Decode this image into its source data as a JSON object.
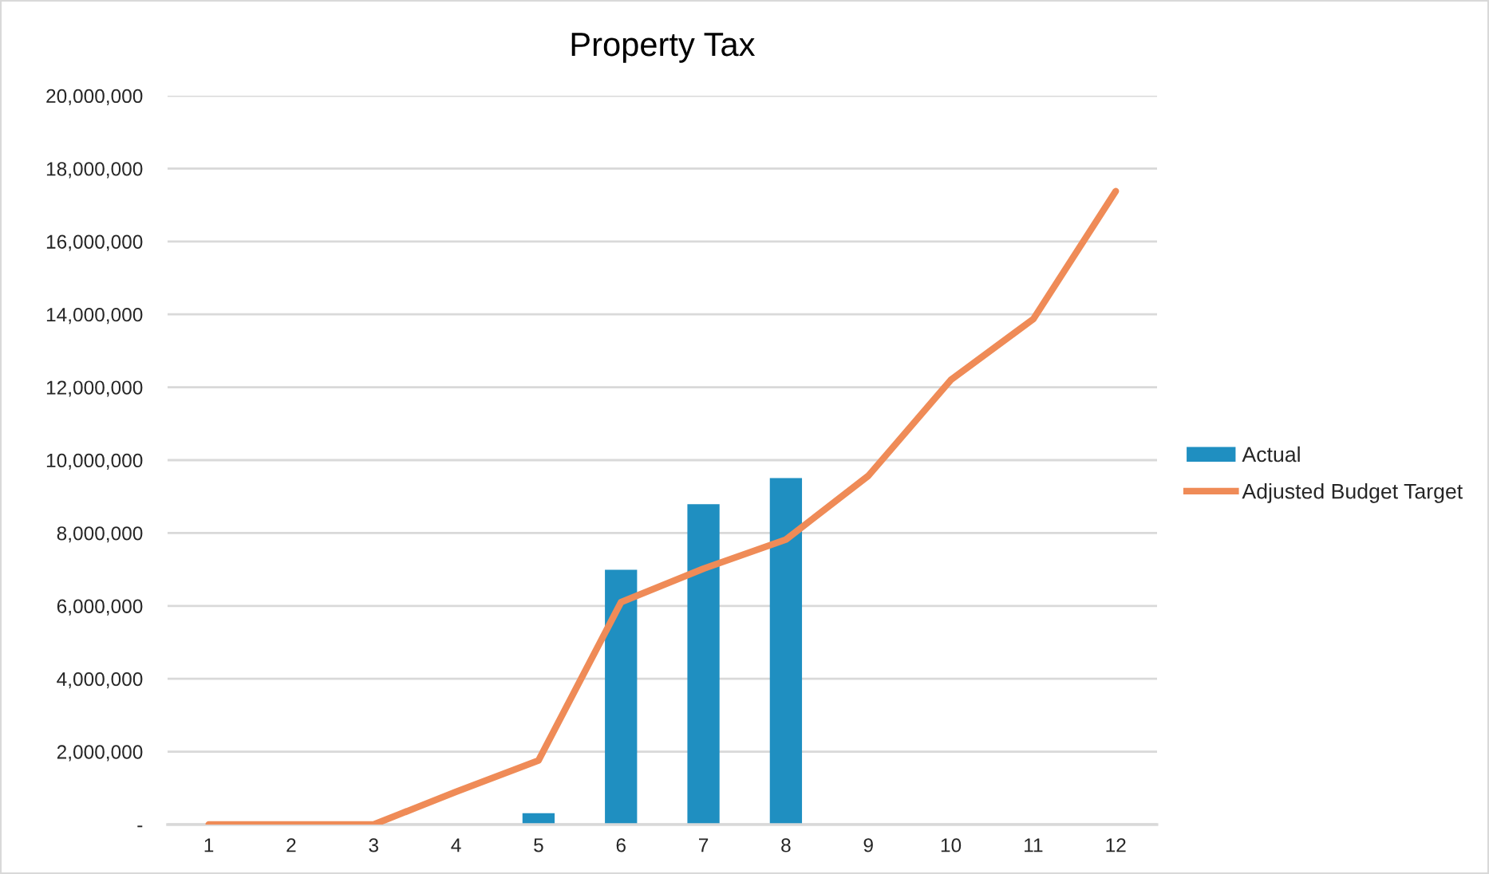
{
  "chart_data": {
    "type": "bar",
    "title": "Property Tax",
    "categories": [
      "1",
      "2",
      "3",
      "4",
      "5",
      "6",
      "7",
      "8",
      "9",
      "10",
      "11",
      "12"
    ],
    "series": [
      {
        "name": "Actual",
        "color": "#1f8fc1",
        "values": [
          null,
          null,
          null,
          null,
          310000,
          6990000,
          8790000,
          9510000,
          null,
          null,
          null,
          null
        ]
      },
      {
        "name": "Adjusted Budget Target",
        "type": "line",
        "color": "#ef8b57",
        "values": [
          0,
          0,
          0,
          900000,
          1760000,
          6100000,
          7020000,
          7820000,
          9570000,
          12200000,
          13870000,
          17380000
        ]
      }
    ],
    "ylim": [
      0,
      20000000
    ],
    "yticks": [
      {
        "value": 0,
        "label": "-"
      },
      {
        "value": 2000000,
        "label": "2,000,000"
      },
      {
        "value": 4000000,
        "label": "4,000,000"
      },
      {
        "value": 6000000,
        "label": "6,000,000"
      },
      {
        "value": 8000000,
        "label": "8,000,000"
      },
      {
        "value": 10000000,
        "label": "10,000,000"
      },
      {
        "value": 12000000,
        "label": "12,000,000"
      },
      {
        "value": 14000000,
        "label": "14,000,000"
      },
      {
        "value": 16000000,
        "label": "16,000,000"
      },
      {
        "value": 18000000,
        "label": "18,000,000"
      },
      {
        "value": 20000000,
        "label": "20,000,000"
      }
    ],
    "grid": "y",
    "legend": "right",
    "marker": "none",
    "line_style": "solid"
  }
}
